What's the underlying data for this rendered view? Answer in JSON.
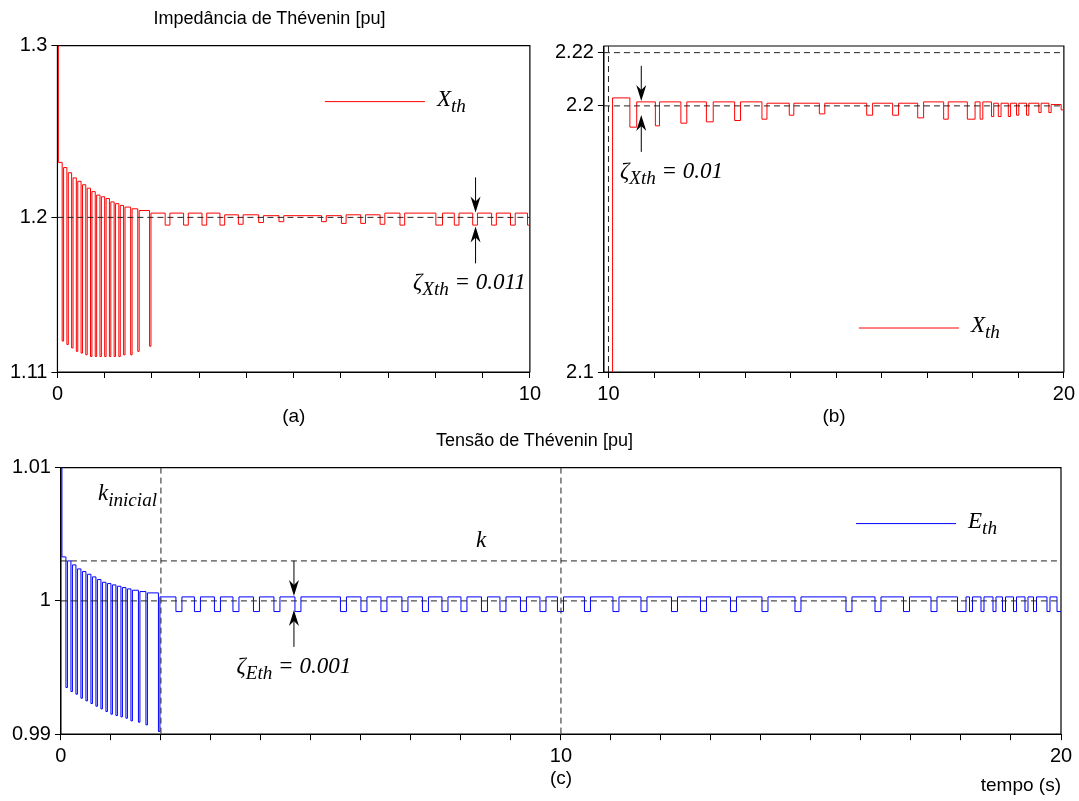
{
  "chart_data": [
    {
      "type": "step",
      "title": "Impedância de Thévenin [pu]",
      "xlim": [
        0,
        10
      ],
      "ylim": [
        1.11,
        1.3
      ],
      "xticks": [
        0,
        {
          "value": 1,
          "label": null
        },
        {
          "value": 2,
          "label": null
        },
        {
          "value": 3,
          "label": null
        },
        {
          "value": 4,
          "label": null
        },
        {
          "value": 5,
          "label": null
        },
        {
          "value": 6,
          "label": null
        },
        {
          "value": 7,
          "label": null
        },
        {
          "value": 8,
          "label": null
        },
        {
          "value": 9,
          "label": null
        },
        10
      ],
      "yticks": [
        1.11,
        1.2,
        1.3
      ],
      "grid": false,
      "legend": "top right",
      "series": [
        {
          "name": "X$_{th}$",
          "color": "#ff0000",
          "x": [
            0,
            0.02,
            0.1,
            0.13,
            0.2,
            0.23,
            0.3,
            0.33,
            0.4,
            0.43,
            0.5,
            0.53,
            0.6,
            0.63,
            0.7,
            0.73,
            0.8,
            0.83,
            0.9,
            0.93,
            1.0,
            1.03,
            1.1,
            1.13,
            1.2,
            1.23,
            1.3,
            1.33,
            1.4,
            1.43,
            1.55,
            1.58,
            1.7,
            1.73,
            1.95,
            1.98,
            2.28,
            2.38,
            2.67,
            2.77,
            3.06,
            3.16,
            3.44,
            3.54,
            3.83,
            3.93,
            4.26,
            4.36,
            4.69,
            4.79,
            5.59,
            5.69,
            6.01,
            6.11,
            6.42,
            6.52,
            6.83,
            6.93,
            7.25,
            7.35,
            8.01,
            8.15,
            8.4,
            8.5,
            8.79,
            8.89,
            9.19,
            9.29,
            9.59,
            9.69,
            9.95,
            10
          ],
          "values": [
            1.3,
            1.232,
            1.128,
            1.229,
            1.126,
            1.226,
            1.124,
            1.223,
            1.122,
            1.221,
            1.121,
            1.219,
            1.12,
            1.217,
            1.119,
            1.215,
            1.119,
            1.213,
            1.119,
            1.212,
            1.119,
            1.211,
            1.119,
            1.209,
            1.119,
            1.208,
            1.119,
            1.207,
            1.12,
            1.206,
            1.12,
            1.205,
            1.122,
            1.204,
            1.125,
            1.2025,
            1.1955,
            1.2025,
            1.1955,
            1.2025,
            1.1955,
            1.2025,
            1.1955,
            1.2015,
            1.196,
            1.2015,
            1.197,
            1.201,
            1.1975,
            1.201,
            1.1975,
            1.201,
            1.1965,
            1.2015,
            1.1965,
            1.2015,
            1.196,
            1.2025,
            1.1955,
            1.2025,
            1.1955,
            1.2025,
            1.1955,
            1.2025,
            1.1955,
            1.2025,
            1.1955,
            1.2025,
            1.1955,
            1.2025,
            1.1955,
            1.1955
          ]
        }
      ],
      "ref_lines": [
        {
          "axis": "y",
          "value": 1.2,
          "line_style": "dashed"
        }
      ],
      "annotations": [
        "(a)",
        {
          "text": "ζ$_{Xth}$ = 0.011",
          "x": 8.85,
          "y": 1.2
        }
      ]
    },
    {
      "type": "step",
      "xlim": [
        9.9,
        20
      ],
      "ylim": [
        2.1,
        2.2225
      ],
      "xticks": [
        10,
        {
          "value": 11,
          "label": null
        },
        {
          "value": 12,
          "label": null
        },
        {
          "value": 13,
          "label": null
        },
        {
          "value": 14,
          "label": null
        },
        {
          "value": 15,
          "label": null
        },
        {
          "value": 16,
          "label": null
        },
        {
          "value": 17,
          "label": null
        },
        {
          "value": 18,
          "label": null
        },
        {
          "value": 19,
          "label": null
        },
        20
      ],
      "yticks": [
        2.1,
        2.2,
        2.22
      ],
      "grid": false,
      "legend": "bottom right",
      "series": [
        {
          "name": "X$_{th}$",
          "color": "#ff0000",
          "x": [
            10.07,
            10.09,
            10.47,
            10.62,
            11.03,
            11.12,
            11.59,
            11.72,
            12.15,
            12.3,
            12.77,
            12.9,
            13.37,
            13.48,
            13.97,
            14.07,
            14.63,
            14.75,
            15.67,
            15.8,
            16.24,
            16.37,
            16.79,
            16.92,
            17.36,
            17.46,
            17.88,
            18.05,
            18.16,
            18.22,
            18.41,
            18.46,
            18.56,
            18.62,
            18.78,
            18.83,
            18.96,
            19.01,
            19.18,
            19.23,
            19.45,
            19.5,
            19.67,
            19.72,
            19.94,
            20
          ],
          "values": [
            2.1,
            2.203,
            2.192,
            2.2015,
            2.1925,
            2.2015,
            2.1935,
            2.2015,
            2.194,
            2.2015,
            2.1945,
            2.2015,
            2.195,
            2.201,
            2.1965,
            2.201,
            2.197,
            2.201,
            2.1965,
            2.201,
            2.1965,
            2.201,
            2.1955,
            2.2015,
            2.195,
            2.2015,
            2.195,
            2.2015,
            2.195,
            2.2015,
            2.196,
            2.201,
            2.196,
            2.201,
            2.196,
            2.201,
            2.1965,
            2.201,
            2.1965,
            2.201,
            2.1975,
            2.201,
            2.1975,
            2.2005,
            2.1985,
            2.1985
          ]
        }
      ],
      "ref_lines": [
        {
          "axis": "y",
          "value": 2.2,
          "line_style": "dashed"
        },
        {
          "axis": "y",
          "value": 2.22,
          "line_style": "dashed"
        },
        {
          "axis": "x",
          "value": 10,
          "line_style": "dashed"
        }
      ],
      "annotations": [
        {
          "text": "ζ$_{Xth}$ = 0.01",
          "x": 10.72,
          "y": 2.2
        },
        "(b)"
      ]
    },
    {
      "type": "step",
      "title": "Tensão de Thévenin [pu]",
      "xlabel": "tempo (s)",
      "xlim": [
        0,
        20
      ],
      "ylim": [
        0.99,
        1.01
      ],
      "xticks": [
        0,
        {
          "value": 1,
          "label": null
        },
        {
          "value": 2,
          "label": null
        },
        {
          "value": 3,
          "label": null
        },
        {
          "value": 4,
          "label": null
        },
        {
          "value": 5,
          "label": null
        },
        {
          "value": 6,
          "label": null
        },
        {
          "value": 7,
          "label": null
        },
        {
          "value": 8,
          "label": null
        },
        {
          "value": 9,
          "label": null
        },
        10,
        {
          "value": 11,
          "label": null
        },
        {
          "value": 12,
          "label": null
        },
        {
          "value": 13,
          "label": null
        },
        {
          "value": 14,
          "label": null
        },
        {
          "value": 15,
          "label": null
        },
        {
          "value": 16,
          "label": null
        },
        {
          "value": 17,
          "label": null
        },
        {
          "value": 18,
          "label": null
        },
        {
          "value": 19,
          "label": null
        },
        20
      ],
      "yticks": [
        0.99,
        1,
        1.01
      ],
      "grid": false,
      "legend": "top right",
      "series": [
        {
          "name": "E$_{th}$",
          "color": "#0000ff",
          "x": [
            0,
            0.02,
            0.1,
            0.13,
            0.2,
            0.23,
            0.3,
            0.33,
            0.4,
            0.43,
            0.5,
            0.53,
            0.6,
            0.63,
            0.7,
            0.73,
            0.8,
            0.83,
            0.9,
            0.93,
            1.0,
            1.03,
            1.1,
            1.13,
            1.2,
            1.23,
            1.3,
            1.33,
            1.4,
            1.43,
            1.55,
            1.58,
            1.7,
            1.73,
            1.95,
            1.98,
            2.3,
            2.42,
            2.67,
            2.79,
            3.07,
            3.19,
            3.44,
            3.56,
            3.85,
            3.97,
            4.26,
            4.38,
            4.68,
            4.8,
            5.59,
            5.71,
            6.0,
            6.12,
            6.4,
            6.52,
            6.82,
            6.94,
            7.23,
            7.35,
            7.62,
            7.74,
            8.0,
            8.12,
            8.41,
            8.53,
            8.78,
            8.9,
            9.19,
            9.31,
            9.58,
            9.7,
            9.93,
            10.05,
            10.47,
            10.59,
            11.04,
            11.16,
            11.6,
            11.72,
            12.21,
            12.33,
            12.79,
            12.91,
            13.39,
            13.51,
            14.02,
            14.14,
            14.68,
            14.8,
            15.7,
            15.82,
            16.28,
            16.4,
            16.85,
            16.97,
            17.4,
            17.52,
            17.93,
            18.1,
            18.17,
            18.23,
            18.4,
            18.46,
            18.64,
            18.7,
            18.83,
            18.89,
            19.05,
            19.11,
            19.28,
            19.34,
            19.45,
            19.51,
            19.72,
            19.78,
            19.92,
            20
          ],
          "values": [
            1.01,
            1.0033,
            0.9935,
            1.003,
            0.9932,
            1.0027,
            0.993,
            1.0024,
            0.9927,
            1.0022,
            0.9925,
            1.002,
            0.9923,
            1.0018,
            0.9921,
            1.0016,
            0.9919,
            1.0014,
            0.9917,
            1.0013,
            0.9915,
            1.0012,
            0.9914,
            1.0011,
            0.9913,
            1.001,
            0.9912,
            1.0009,
            0.991,
            1.0008,
            0.9909,
            1.0007,
            0.9907,
            1.0006,
            0.9902,
            1.0003,
            0.9992,
            1.0003,
            0.9992,
            1.0003,
            0.9992,
            1.0003,
            0.9992,
            1.0003,
            0.9992,
            1.0003,
            0.9992,
            1.0003,
            0.9992,
            1.0003,
            0.9992,
            1.0003,
            0.9992,
            1.0003,
            0.9992,
            1.0003,
            0.9992,
            1.0003,
            0.9992,
            1.0003,
            0.9992,
            1.0003,
            0.9992,
            1.0003,
            0.9992,
            1.0003,
            0.9992,
            1.0003,
            0.9992,
            1.0003,
            0.9992,
            1.0003,
            0.9992,
            1.0003,
            0.9992,
            1.0003,
            0.9992,
            1.0003,
            0.9992,
            1.0003,
            0.9992,
            1.0003,
            0.9992,
            1.0003,
            0.9992,
            1.0003,
            0.9992,
            1.0003,
            0.9992,
            1.0003,
            0.9992,
            1.0003,
            0.9992,
            1.0003,
            0.9992,
            1.0003,
            0.9992,
            1.0003,
            0.9992,
            1.0003,
            0.9992,
            1.0003,
            0.9992,
            1.0003,
            0.9992,
            1.0003,
            0.9992,
            1.0003,
            0.9992,
            1.0003,
            0.9992,
            1.0003,
            0.9992,
            1.0003,
            0.9992,
            1.0003,
            0.9992,
            0.9992
          ]
        }
      ],
      "ref_lines": [
        {
          "axis": "y",
          "value": 1,
          "line_style": "dashed"
        },
        {
          "axis": "y",
          "value": 1.003,
          "label": "k",
          "line_style": "dashed"
        },
        {
          "axis": "x",
          "value": 2,
          "label": "k$_{inicial}$",
          "line_style": "dashed"
        },
        {
          "axis": "x",
          "value": 10,
          "line_style": "dashed"
        }
      ],
      "annotations": [
        {
          "text": "ζ$_{Eth}$ = 0.001",
          "x": 4.66,
          "y": 1
        },
        "(c)"
      ]
    }
  ]
}
